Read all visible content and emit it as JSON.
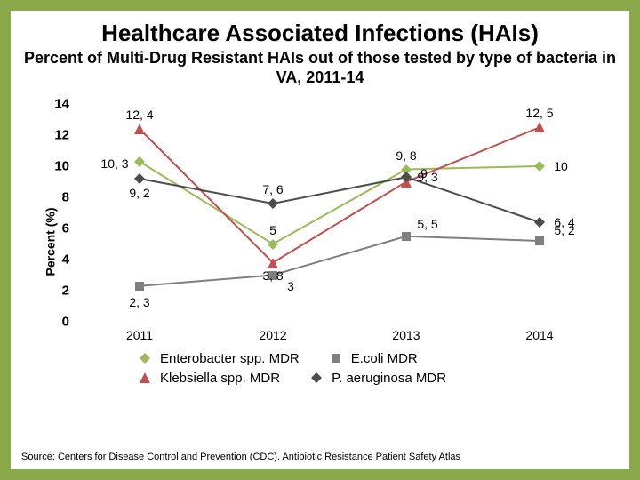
{
  "title": "Healthcare Associated Infections (HAIs)",
  "subtitle": "Percent of Multi-Drug Resistant HAIs out of those tested by type of bacteria in VA, 2011-14",
  "ylabel": "Percent (%)",
  "source": "Source: Centers for Disease Control and Prevention (CDC). Antibiotic Resistance Patient Safety Atlas",
  "background_outer": "#8aa94a",
  "background_inner": "#ffffff",
  "chart": {
    "type": "line",
    "x_categories": [
      "2011",
      "2012",
      "2013",
      "2014"
    ],
    "ylim": [
      0,
      14
    ],
    "ytick_step": 2,
    "title_fontsize": 26,
    "subtitle_fontsize": 18,
    "label_fontsize": 14,
    "marker_size": 12,
    "line_width": 2,
    "series": [
      {
        "name": "Enterobacter spp. MDR",
        "marker": "diamond",
        "color": "#9bbb59",
        "values": [
          10.3,
          5,
          9.8,
          10
        ],
        "labels": [
          "10, 3",
          "5",
          "9, 8",
          "10"
        ],
        "label_offsets": [
          {
            "dx": -28,
            "dy": 2
          },
          {
            "dx": 0,
            "dy": -16
          },
          {
            "dx": 0,
            "dy": -16
          },
          {
            "dx": 24,
            "dy": 0
          }
        ]
      },
      {
        "name": "E.coli MDR",
        "marker": "square",
        "color": "#7f7f7f",
        "values": [
          2.3,
          3,
          5.5,
          5.2
        ],
        "labels": [
          "2, 3",
          "3",
          "5, 5",
          "5, 2"
        ],
        "label_offsets": [
          {
            "dx": 0,
            "dy": 18
          },
          {
            "dx": 20,
            "dy": 12
          },
          {
            "dx": 24,
            "dy": -14
          },
          {
            "dx": 28,
            "dy": -12
          }
        ]
      },
      {
        "name": "Klebsiella spp. MDR",
        "marker": "triangle",
        "color": "#c0504d",
        "values": [
          12.4,
          3.8,
          9,
          12.5
        ],
        "labels": [
          "12, 4",
          "3, 8",
          "9",
          "12, 5"
        ],
        "label_offsets": [
          {
            "dx": 0,
            "dy": -16
          },
          {
            "dx": 0,
            "dy": 14
          },
          {
            "dx": 20,
            "dy": -10
          },
          {
            "dx": 0,
            "dy": -16
          }
        ]
      },
      {
        "name": "P. aeruginosa MDR",
        "marker": "diamond",
        "color": "#4c4c4c",
        "values": [
          9.2,
          7.6,
          9.3,
          6.4
        ],
        "labels": [
          "9, 2",
          "7, 6",
          "9, 3",
          "6, 4"
        ],
        "label_offsets": [
          {
            "dx": 0,
            "dy": 16
          },
          {
            "dx": 0,
            "dy": -16
          },
          {
            "dx": 24,
            "dy": 0
          },
          {
            "dx": 28,
            "dy": 0
          }
        ]
      }
    ]
  }
}
